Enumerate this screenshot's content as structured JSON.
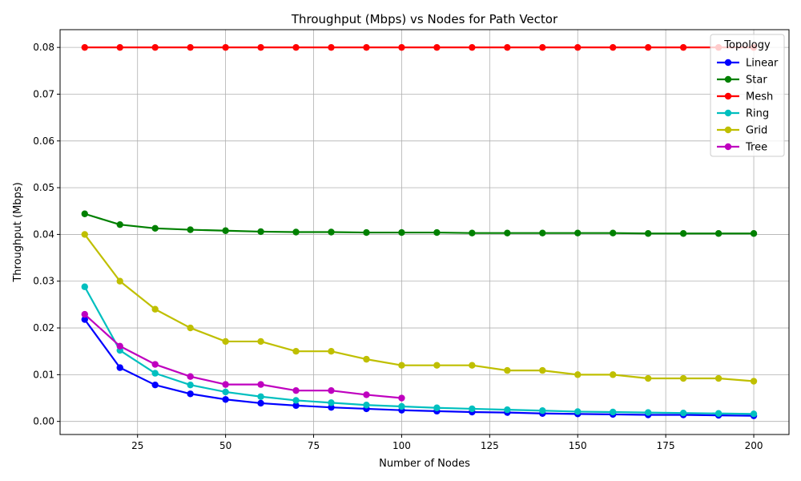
{
  "chart_data": {
    "type": "line",
    "title": "Throughput (Mbps) vs Nodes for Path Vector",
    "xlabel": "Number of Nodes",
    "ylabel": "Throughput (Mbps)",
    "xlim": [
      3,
      210
    ],
    "ylim": [
      -0.0028,
      0.0838
    ],
    "xticks": [
      25,
      50,
      75,
      100,
      125,
      150,
      175,
      200
    ],
    "xtick_labels": [
      "25",
      "50",
      "75",
      "100",
      "125",
      "150",
      "175",
      "200"
    ],
    "yticks": [
      0,
      0.01,
      0.02,
      0.03,
      0.04,
      0.05,
      0.06,
      0.07,
      0.08
    ],
    "ytick_labels": [
      "0.00",
      "0.01",
      "0.02",
      "0.03",
      "0.04",
      "0.05",
      "0.06",
      "0.07",
      "0.08"
    ],
    "grid": true,
    "legend": {
      "title": "Topology",
      "position": "top-right"
    },
    "series": [
      {
        "name": "Linear",
        "color": "#0000ff",
        "x": [
          10,
          20,
          30,
          40,
          50,
          60,
          70,
          80,
          90,
          100,
          110,
          120,
          130,
          140,
          150,
          160,
          170,
          180,
          190,
          200
        ],
        "y": [
          0.0218,
          0.0115,
          0.0078,
          0.0059,
          0.0047,
          0.0039,
          0.0034,
          0.003,
          0.0027,
          0.0024,
          0.0022,
          0.002,
          0.0019,
          0.0017,
          0.0016,
          0.0015,
          0.0014,
          0.0014,
          0.0013,
          0.0012
        ]
      },
      {
        "name": "Star",
        "color": "#008000",
        "x": [
          10,
          20,
          30,
          40,
          50,
          60,
          70,
          80,
          90,
          100,
          110,
          120,
          130,
          140,
          150,
          160,
          170,
          180,
          190,
          200
        ],
        "y": [
          0.0444,
          0.0421,
          0.0413,
          0.041,
          0.0408,
          0.0406,
          0.0405,
          0.0405,
          0.0404,
          0.0404,
          0.0404,
          0.0403,
          0.0403,
          0.0403,
          0.0403,
          0.0403,
          0.0402,
          0.0402,
          0.0402,
          0.0402
        ]
      },
      {
        "name": "Mesh",
        "color": "#ff0000",
        "x": [
          10,
          20,
          30,
          40,
          50,
          60,
          70,
          80,
          90,
          100,
          110,
          120,
          130,
          140,
          150,
          160,
          170,
          180,
          190,
          200
        ],
        "y": [
          0.08,
          0.08,
          0.08,
          0.08,
          0.08,
          0.08,
          0.08,
          0.08,
          0.08,
          0.08,
          0.08,
          0.08,
          0.08,
          0.08,
          0.08,
          0.08,
          0.08,
          0.08,
          0.08,
          0.08
        ]
      },
      {
        "name": "Ring",
        "color": "#00bfbf",
        "x": [
          10,
          20,
          30,
          40,
          50,
          60,
          70,
          80,
          90,
          100,
          110,
          120,
          130,
          140,
          150,
          160,
          170,
          180,
          190,
          200
        ],
        "y": [
          0.0288,
          0.0152,
          0.0103,
          0.0078,
          0.0063,
          0.0053,
          0.0045,
          0.004,
          0.0035,
          0.0032,
          0.0029,
          0.0027,
          0.0025,
          0.0023,
          0.0021,
          0.002,
          0.0019,
          0.0018,
          0.0017,
          0.0016
        ]
      },
      {
        "name": "Grid",
        "color": "#bfbf00",
        "x": [
          10,
          20,
          30,
          40,
          50,
          60,
          70,
          80,
          90,
          100,
          110,
          120,
          130,
          140,
          150,
          160,
          170,
          180,
          190,
          200
        ],
        "y": [
          0.04,
          0.03,
          0.024,
          0.02,
          0.0171,
          0.0171,
          0.015,
          0.015,
          0.0133,
          0.012,
          0.012,
          0.012,
          0.0109,
          0.0109,
          0.01,
          0.01,
          0.0092,
          0.0092,
          0.0092,
          0.0086
        ]
      },
      {
        "name": "Tree",
        "color": "#bf00bf",
        "x": [
          10,
          20,
          30,
          40,
          50,
          60,
          70,
          80,
          90,
          100
        ],
        "y": [
          0.0229,
          0.0161,
          0.0122,
          0.0096,
          0.0079,
          0.0079,
          0.0066,
          0.0066,
          0.0057,
          0.005
        ]
      }
    ]
  }
}
